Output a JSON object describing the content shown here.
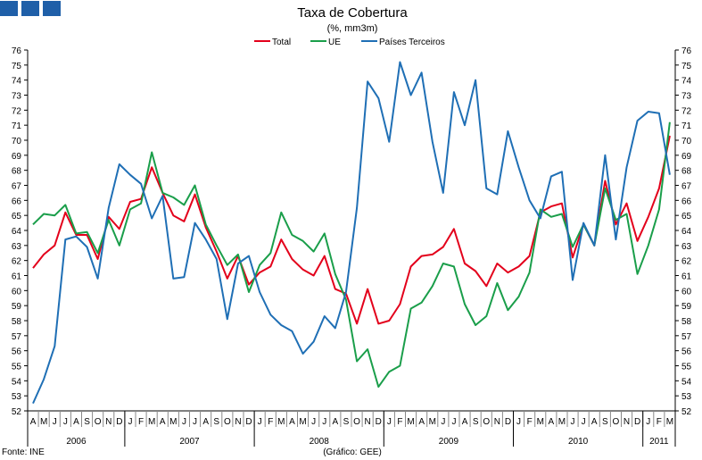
{
  "header": {
    "brand_color": "#1f5fa8"
  },
  "chart_data": {
    "type": "line",
    "title": "Taxa de Cobertura",
    "subtitle": "(%, mm3m)",
    "ylim": [
      52,
      76
    ],
    "yticks": [
      52,
      53,
      54,
      55,
      56,
      57,
      58,
      59,
      60,
      61,
      62,
      63,
      64,
      65,
      66,
      67,
      68,
      69,
      70,
      71,
      72,
      73,
      74,
      75,
      76
    ],
    "months": [
      "A",
      "M",
      "J",
      "J",
      "A",
      "S",
      "O",
      "N",
      "D",
      "J",
      "F",
      "M",
      "A",
      "M",
      "J",
      "J",
      "A",
      "S",
      "O",
      "N",
      "D",
      "J",
      "F",
      "M",
      "A",
      "M",
      "J",
      "J",
      "A",
      "S",
      "O",
      "N",
      "D",
      "J",
      "F",
      "M",
      "A",
      "M",
      "J",
      "J",
      "A",
      "S",
      "O",
      "N",
      "D",
      "J",
      "F",
      "M",
      "A",
      "M",
      "J",
      "J",
      "A",
      "S",
      "O",
      "N",
      "D",
      "J",
      "F",
      "M"
    ],
    "years": [
      {
        "label": "2006",
        "months": 9
      },
      {
        "label": "2007",
        "months": 12
      },
      {
        "label": "2008",
        "months": 12
      },
      {
        "label": "2009",
        "months": 12
      },
      {
        "label": "2010",
        "months": 12
      },
      {
        "label": "2011",
        "months": 3
      }
    ],
    "legend_position": "top",
    "grid": false,
    "series": [
      {
        "name": "Total",
        "color": "#e3001b",
        "values": [
          61.5,
          62.4,
          63.0,
          65.2,
          63.7,
          63.7,
          62.1,
          64.9,
          64.1,
          65.9,
          66.1,
          68.2,
          66.5,
          65.0,
          64.6,
          66.4,
          64.2,
          62.6,
          60.8,
          62.3,
          60.4,
          61.2,
          61.6,
          63.4,
          62.1,
          61.4,
          61.0,
          62.3,
          60.1,
          59.8,
          57.8,
          60.1,
          57.8,
          58.0,
          59.1,
          61.6,
          62.3,
          62.4,
          62.9,
          64.1,
          61.8,
          61.3,
          60.3,
          61.8,
          61.2,
          61.6,
          62.3,
          65.2,
          65.6,
          65.8,
          62.2,
          64.4,
          63.0,
          67.3,
          64.4,
          65.8,
          63.3,
          64.9,
          66.8,
          70.3
        ]
      },
      {
        "name": "UE",
        "color": "#1a9e4a",
        "values": [
          64.4,
          65.1,
          65.0,
          65.7,
          63.8,
          63.9,
          62.5,
          64.7,
          63.0,
          65.4,
          65.8,
          69.2,
          66.5,
          66.2,
          65.7,
          67.0,
          64.4,
          63.0,
          61.7,
          62.4,
          59.9,
          61.7,
          62.5,
          65.2,
          63.7,
          63.3,
          62.6,
          63.8,
          61.1,
          59.4,
          55.3,
          56.1,
          53.6,
          54.6,
          55.0,
          58.8,
          59.2,
          60.3,
          61.8,
          61.6,
          59.1,
          57.7,
          58.3,
          60.5,
          58.7,
          59.6,
          61.2,
          65.4,
          64.9,
          65.1,
          62.9,
          64.4,
          63.0,
          66.8,
          64.7,
          65.1,
          61.1,
          63.0,
          65.4,
          71.2
        ]
      },
      {
        "name": "Países Terceiros",
        "color": "#1f6fb5",
        "values": [
          52.5,
          54.1,
          56.3,
          63.4,
          63.6,
          62.9,
          60.8,
          65.5,
          68.4,
          67.7,
          67.1,
          64.8,
          66.3,
          60.8,
          60.9,
          64.5,
          63.4,
          62.1,
          58.1,
          61.8,
          62.3,
          59.9,
          58.4,
          57.7,
          57.3,
          55.8,
          56.6,
          58.3,
          57.5,
          59.9,
          65.5,
          73.9,
          72.8,
          69.9,
          75.2,
          73.0,
          74.5,
          69.9,
          66.5,
          73.2,
          71.0,
          74.0,
          66.8,
          66.4,
          70.6,
          68.2,
          66.0,
          64.8,
          67.6,
          67.9,
          60.7,
          64.5,
          63.0,
          69.0,
          63.4,
          68.2,
          71.3,
          71.9,
          71.8,
          67.7
        ]
      }
    ]
  },
  "footer": {
    "source": "Fonte: INE",
    "credit": "(Gráfico: GEE)"
  }
}
